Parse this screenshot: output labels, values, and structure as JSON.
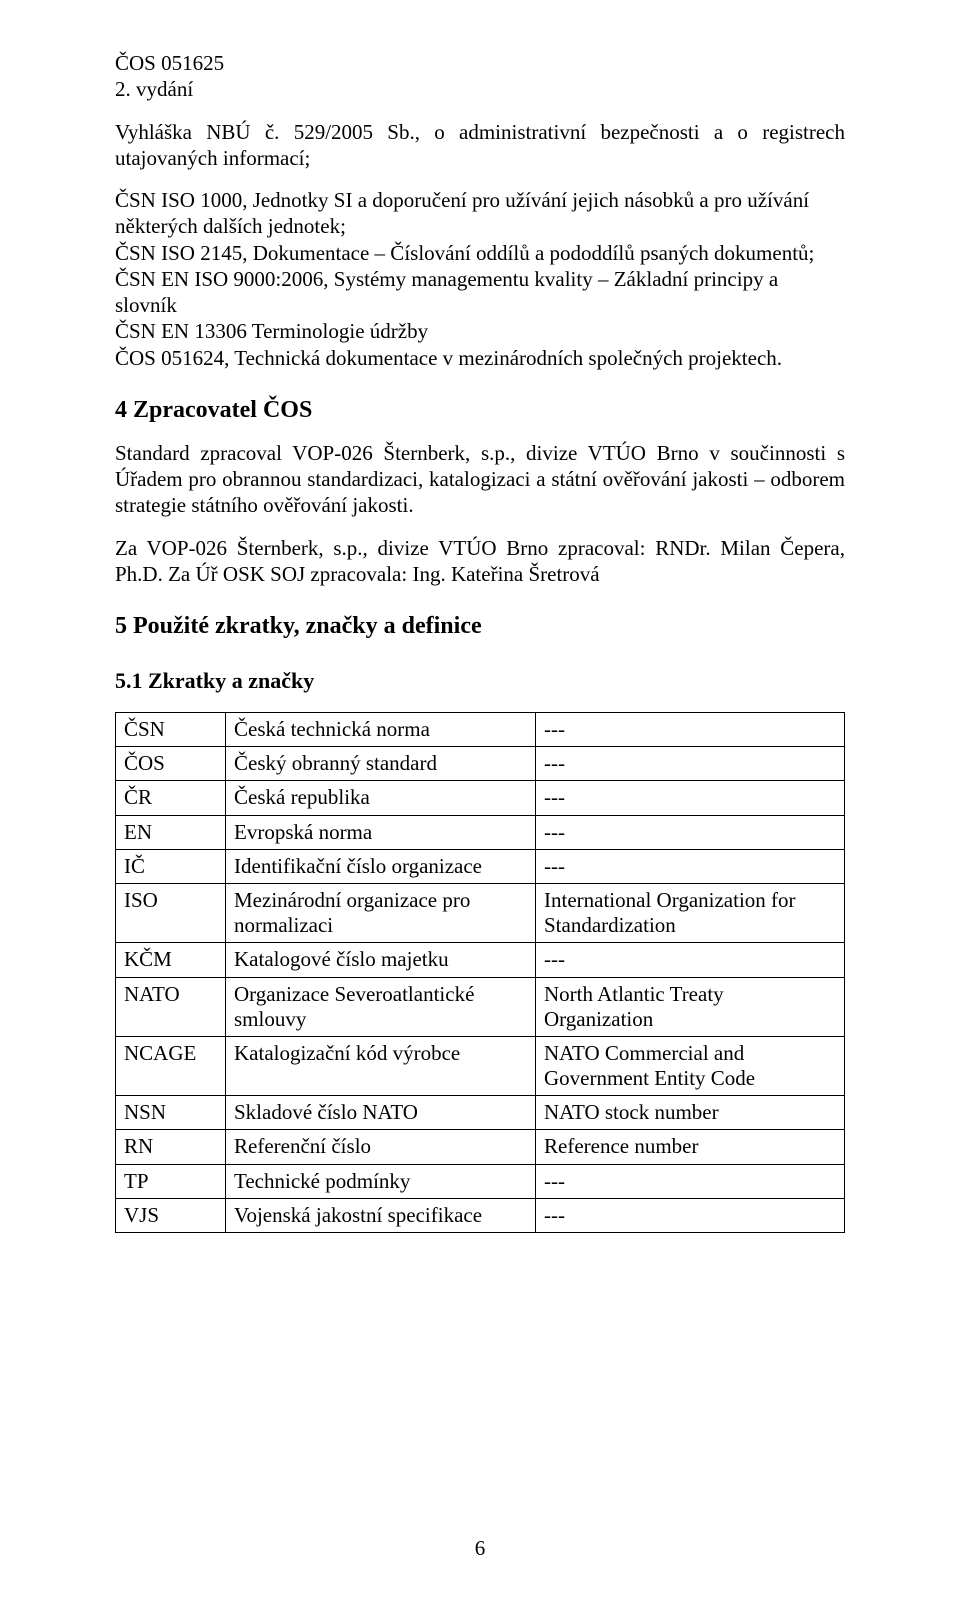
{
  "header": {
    "doc_code": "ČOS 051625",
    "edition": "2. vydání"
  },
  "intro_line": "Vyhláška NBÚ č. 529/2005 Sb., o administrativní bezpečnosti a o registrech utajovaných informací;",
  "refs": [
    "ČSN ISO 1000, Jednotky SI a doporučení pro užívání jejich násobků a pro užívání některých dalších jednotek;",
    "ČSN ISO 2145, Dokumentace – Číslování oddílů a pododdílů psaných dokumentů;",
    "ČSN EN ISO 9000:2006, Systémy managementu kvality – Základní principy a slovník",
    "ČSN EN 13306 Terminologie údržby",
    "ČOS 051624, Technická dokumentace v mezinárodních společných projektech."
  ],
  "section4": {
    "title": "4 Zpracovatel ČOS",
    "p1": "Standard zpracoval VOP-026 Šternberk, s.p., divize VTÚO Brno v součinnosti s Úřadem pro obrannou standardizaci, katalogizaci a státní ověřování jakosti – odborem strategie státního ověřování jakosti.",
    "p2": "Za VOP-026 Šternberk, s.p., divize VTÚO Brno zpracoval: RNDr. Milan Čepera, Ph.D. Za Úř OSK SOJ zpracovala: Ing. Kateřina Šretrová"
  },
  "section5": {
    "title": "5 Použité zkratky, značky a definice",
    "sub1": "5.1 Zkratky a značky"
  },
  "table": {
    "rows": [
      {
        "abbr": "ČSN",
        "cz": "Česká technická norma",
        "en": "---"
      },
      {
        "abbr": "ČOS",
        "cz": "Český obranný standard",
        "en": "---"
      },
      {
        "abbr": "ČR",
        "cz": "Česká republika",
        "en": "---"
      },
      {
        "abbr": "EN",
        "cz": "Evropská norma",
        "en": "---"
      },
      {
        "abbr": "IČ",
        "cz": "Identifikační číslo organizace",
        "en": "---"
      },
      {
        "abbr": "ISO",
        "cz": "Mezinárodní organizace pro normalizaci",
        "en": "International Organization for Standardization"
      },
      {
        "abbr": "KČM",
        "cz": "Katalogové číslo majetku",
        "en": "---"
      },
      {
        "abbr": "NATO",
        "cz": "Organizace Severoatlantické smlouvy",
        "en": "North Atlantic Treaty Organization"
      },
      {
        "abbr": "NCAGE",
        "cz": "Katalogizační kód výrobce",
        "en": "NATO Commercial and Government Entity Code"
      },
      {
        "abbr": "NSN",
        "cz": "Skladové číslo NATO",
        "en": "NATO stock number"
      },
      {
        "abbr": "RN",
        "cz": "Referenční číslo",
        "en": "Reference number"
      },
      {
        "abbr": "TP",
        "cz": "Technické podmínky",
        "en": "---"
      },
      {
        "abbr": "VJS",
        "cz": "Vojenská jakostní specifikace",
        "en": "---"
      }
    ]
  },
  "page_number": "6"
}
